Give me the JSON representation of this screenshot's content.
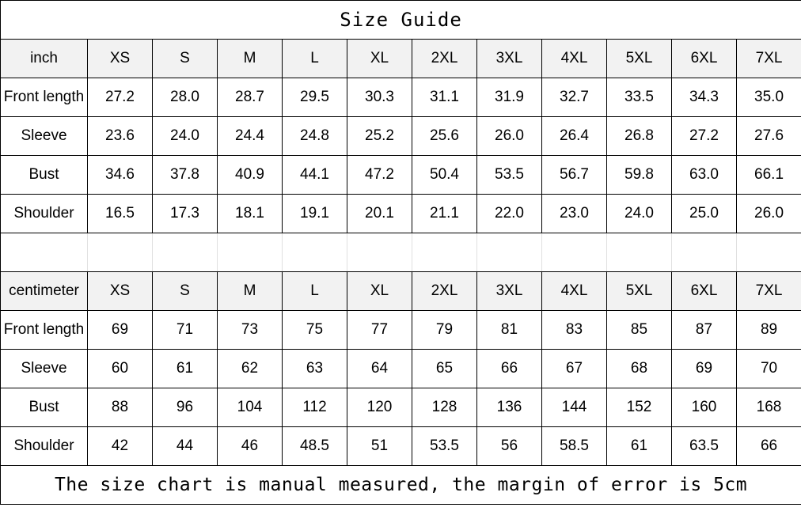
{
  "title": "Size Guide",
  "sizes": [
    "XS",
    "S",
    "M",
    "L",
    "XL",
    "2XL",
    "3XL",
    "4XL",
    "5XL",
    "6XL",
    "7XL"
  ],
  "inch": {
    "unit_label": "inch",
    "rows": [
      {
        "label": "Front length",
        "values": [
          "27.2",
          "28.0",
          "28.7",
          "29.5",
          "30.3",
          "31.1",
          "31.9",
          "32.7",
          "33.5",
          "34.3",
          "35.0"
        ]
      },
      {
        "label": "Sleeve",
        "values": [
          "23.6",
          "24.0",
          "24.4",
          "24.8",
          "25.2",
          "25.6",
          "26.0",
          "26.4",
          "26.8",
          "27.2",
          "27.6"
        ]
      },
      {
        "label": "Bust",
        "values": [
          "34.6",
          "37.8",
          "40.9",
          "44.1",
          "47.2",
          "50.4",
          "53.5",
          "56.7",
          "59.8",
          "63.0",
          "66.1"
        ]
      },
      {
        "label": "Shoulder",
        "values": [
          "16.5",
          "17.3",
          "18.1",
          "19.1",
          "20.1",
          "21.1",
          "22.0",
          "23.0",
          "24.0",
          "25.0",
          "26.0"
        ]
      }
    ]
  },
  "centimeter": {
    "unit_label": "centimeter",
    "rows": [
      {
        "label": "Front length",
        "values": [
          "69",
          "71",
          "73",
          "75",
          "77",
          "79",
          "81",
          "83",
          "85",
          "87",
          "89"
        ]
      },
      {
        "label": "Sleeve",
        "values": [
          "60",
          "61",
          "62",
          "63",
          "64",
          "65",
          "66",
          "67",
          "68",
          "69",
          "70"
        ]
      },
      {
        "label": "Bust",
        "values": [
          "88",
          "96",
          "104",
          "112",
          "120",
          "128",
          "136",
          "144",
          "152",
          "160",
          "168"
        ]
      },
      {
        "label": "Shoulder",
        "values": [
          "42",
          "44",
          "46",
          "48.5",
          "51",
          "53.5",
          "56",
          "58.5",
          "61",
          "63.5",
          "66"
        ]
      }
    ]
  },
  "footer": "The size chart is manual measured, the margin of error is 5cm",
  "colors": {
    "header_bg": "#f2f2f2",
    "border": "#000000",
    "spacer_line": "#e0e0e0"
  }
}
